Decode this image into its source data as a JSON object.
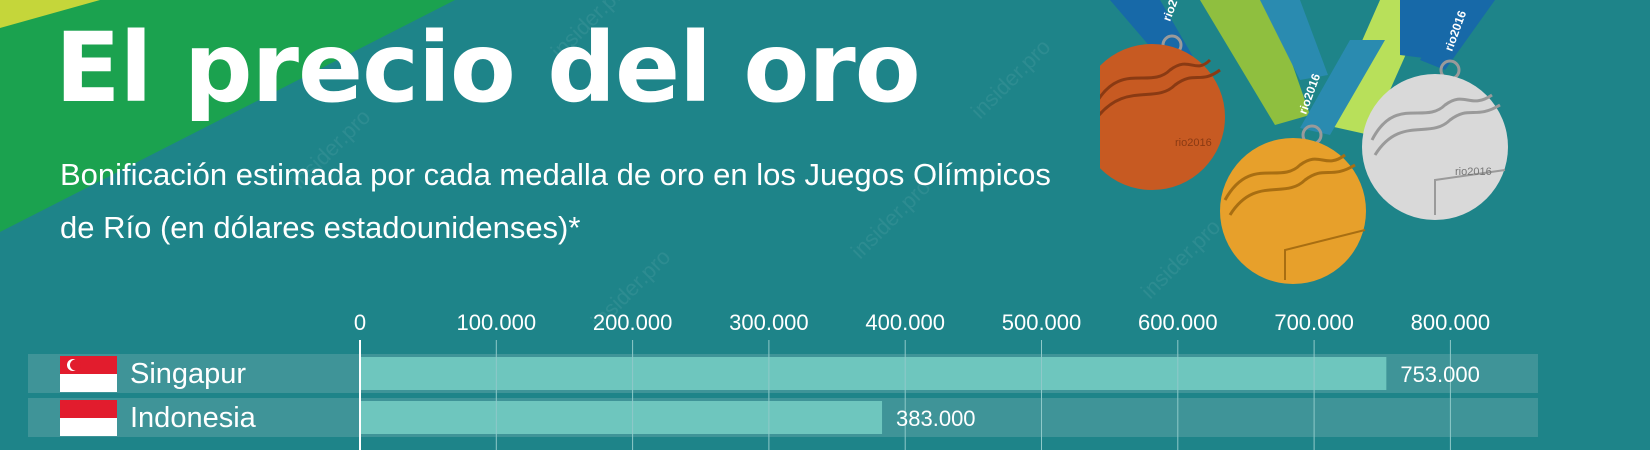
{
  "page": {
    "title": "El precio del oro",
    "subtitle": "Bonificación estimada por cada medalla de oro en los Juegos Olímpicos de Río (en dólares estadounidenses)*"
  },
  "medal_text": "rio2016",
  "watermark": "insider.pro",
  "colors": {
    "background": "#1e8489",
    "bar": "#6ec6be",
    "row_track": "#3f9498",
    "grid": "#8fc9c9",
    "axis": "#ffffff"
  },
  "chart_data": {
    "type": "bar",
    "orientation": "horizontal",
    "title": "",
    "xlabel": "",
    "ylabel": "",
    "xlim": [
      0,
      850000
    ],
    "ticks": [
      0,
      100000,
      200000,
      300000,
      400000,
      500000,
      600000,
      700000,
      800000
    ],
    "tick_labels": [
      "0",
      "100.000",
      "200.000",
      "300.000",
      "400.000",
      "500.000",
      "600.000",
      "700.000",
      "800.000"
    ],
    "grid": true,
    "categories": [
      "Singapur",
      "Indonesia"
    ],
    "values": [
      753000,
      383000
    ],
    "value_labels": [
      "753.000",
      "383.000"
    ],
    "flags": [
      "singapore-flag",
      "indonesia-flag"
    ]
  }
}
